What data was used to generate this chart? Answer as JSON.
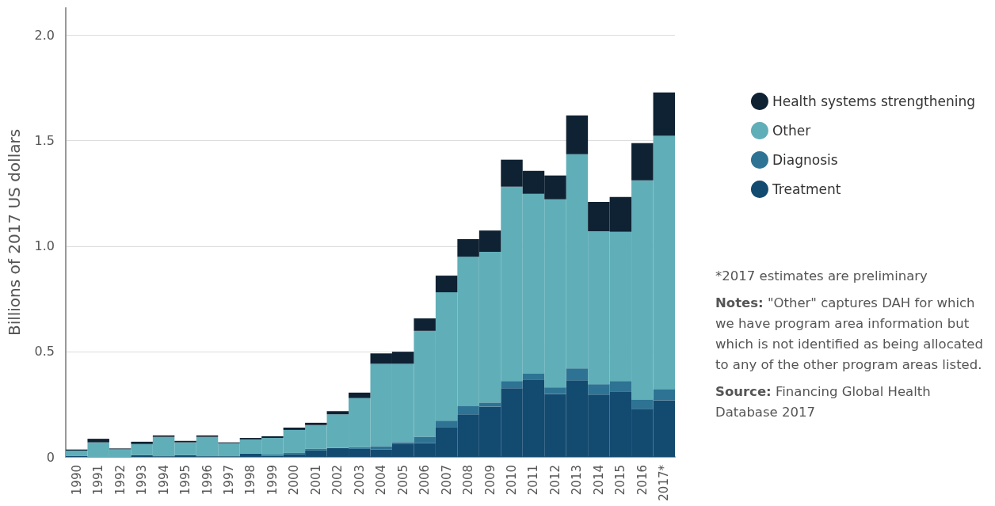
{
  "chart_data": {
    "type": "bar",
    "stacked": true,
    "ylabel": "Billions of 2017 US dollars",
    "categories": [
      "1990",
      "1991",
      "1992",
      "1993",
      "1994",
      "1995",
      "1996",
      "1997",
      "1998",
      "1999",
      "2000",
      "2001",
      "2002",
      "2003",
      "2004",
      "2005",
      "2006",
      "2007",
      "2008",
      "2009",
      "2010",
      "2011",
      "2012",
      "2013",
      "2014",
      "2015",
      "2016",
      "2017*"
    ],
    "series": [
      {
        "name": "Treatment",
        "color": "#134a70",
        "values": [
          0.004,
          0,
          0,
          0.009,
          0.003,
          0.009,
          0.003,
          0.003,
          0.016,
          0.006,
          0.012,
          0.031,
          0.042,
          0.038,
          0.036,
          0.063,
          0.066,
          0.142,
          0.202,
          0.239,
          0.326,
          0.367,
          0.299,
          0.363,
          0.296,
          0.311,
          0.228,
          0.269
        ]
      },
      {
        "name": "Diagnosis",
        "color": "#2e7393",
        "values": [
          0,
          0,
          0,
          0,
          0,
          0,
          0,
          0,
          0,
          0.005,
          0.007,
          0.007,
          0,
          0.008,
          0.015,
          0.007,
          0.03,
          0.03,
          0.041,
          0.019,
          0.034,
          0.03,
          0.031,
          0.057,
          0.049,
          0.049,
          0.045,
          0.053
        ]
      },
      {
        "name": "Other",
        "color": "#60aeb8",
        "values": [
          0.026,
          0.069,
          0.036,
          0.052,
          0.092,
          0.06,
          0.092,
          0.062,
          0.067,
          0.079,
          0.109,
          0.113,
          0.16,
          0.233,
          0.391,
          0.372,
          0.502,
          0.609,
          0.707,
          0.715,
          0.922,
          0.851,
          0.892,
          1.016,
          0.726,
          0.708,
          1.039,
          1.201
        ]
      },
      {
        "name": "Health systems strengthening",
        "color": "#0f2233",
        "values": [
          0.005,
          0.017,
          0.004,
          0.011,
          0.007,
          0.007,
          0.007,
          0.004,
          0.007,
          0.008,
          0.011,
          0.011,
          0.015,
          0.026,
          0.049,
          0.057,
          0.059,
          0.079,
          0.083,
          0.101,
          0.128,
          0.109,
          0.113,
          0.184,
          0.139,
          0.165,
          0.177,
          0.206
        ]
      }
    ],
    "ylim": [
      0,
      2.13
    ],
    "yticks": [
      0,
      0.5,
      {
        "value": 1,
        "label": "1.0"
      },
      1.5,
      {
        "value": 2,
        "label": "2.0"
      }
    ],
    "grid": "y",
    "legend": "right",
    "annotations": [
      "*2017 estimates are preliminary",
      "Notes: \"Other\" captures DAH for which we have program area information but which is not identified as being allocated to any of the other program areas listed.",
      "Source: Financing Global Health Database 2017"
    ]
  }
}
